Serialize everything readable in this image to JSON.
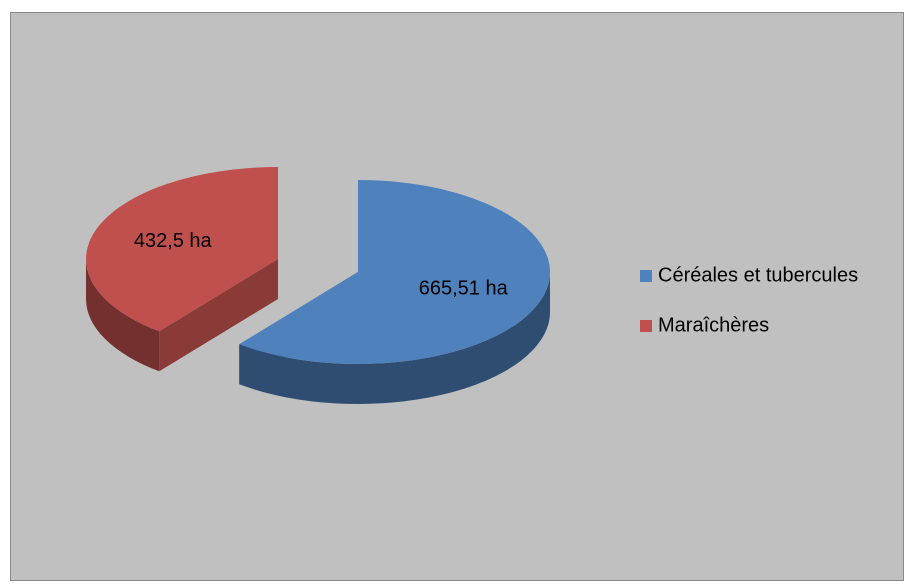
{
  "chart_data": {
    "type": "pie3d",
    "categories": [
      "Céréales et tubercules",
      "Maraîchères"
    ],
    "values": [
      665.51,
      432.5
    ],
    "value_labels": [
      "665,51 ha",
      "432,5 ha"
    ],
    "colors": [
      "#4f81bd",
      "#c0504d"
    ],
    "legend": "right"
  }
}
